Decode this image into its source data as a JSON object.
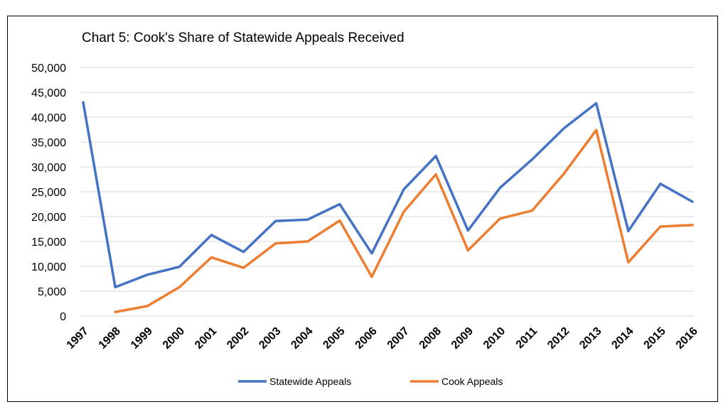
{
  "chart_data": {
    "type": "line",
    "title": "Chart 5:  Cook's Share of Statewide Appeals Received",
    "xlabel": "",
    "ylabel": "",
    "categories": [
      "1997",
      "1998",
      "1999",
      "2000",
      "2001",
      "2002",
      "2003",
      "2004",
      "2005",
      "2006",
      "2007",
      "2008",
      "2009",
      "2010",
      "2011",
      "2012",
      "2013",
      "2014",
      "2015",
      "2016"
    ],
    "ylim": [
      0,
      50000
    ],
    "yticks": [
      0,
      5000,
      10000,
      15000,
      20000,
      25000,
      30000,
      35000,
      40000,
      45000,
      50000
    ],
    "ytick_labels": [
      "0",
      "5,000",
      "10,000",
      "15,000",
      "20,000",
      "25,000",
      "30,000",
      "35,000",
      "40,000",
      "45,000",
      "50,000"
    ],
    "grid": true,
    "legend_position": "bottom",
    "series": [
      {
        "name": "Statewide Appeals",
        "color": "#4472C4",
        "values": [
          43000,
          5800,
          8300,
          9900,
          16300,
          12900,
          19100,
          19400,
          22500,
          12600,
          25500,
          32200,
          17200,
          25800,
          31500,
          37800,
          42800,
          17100,
          26600,
          23000
        ]
      },
      {
        "name": "Cook Appeals",
        "color": "#ED7D31",
        "values": [
          null,
          800,
          2000,
          5800,
          11800,
          9700,
          14600,
          15000,
          19200,
          7900,
          21000,
          28500,
          13200,
          19600,
          21200,
          28700,
          37400,
          10800,
          18000,
          18300
        ]
      }
    ]
  }
}
